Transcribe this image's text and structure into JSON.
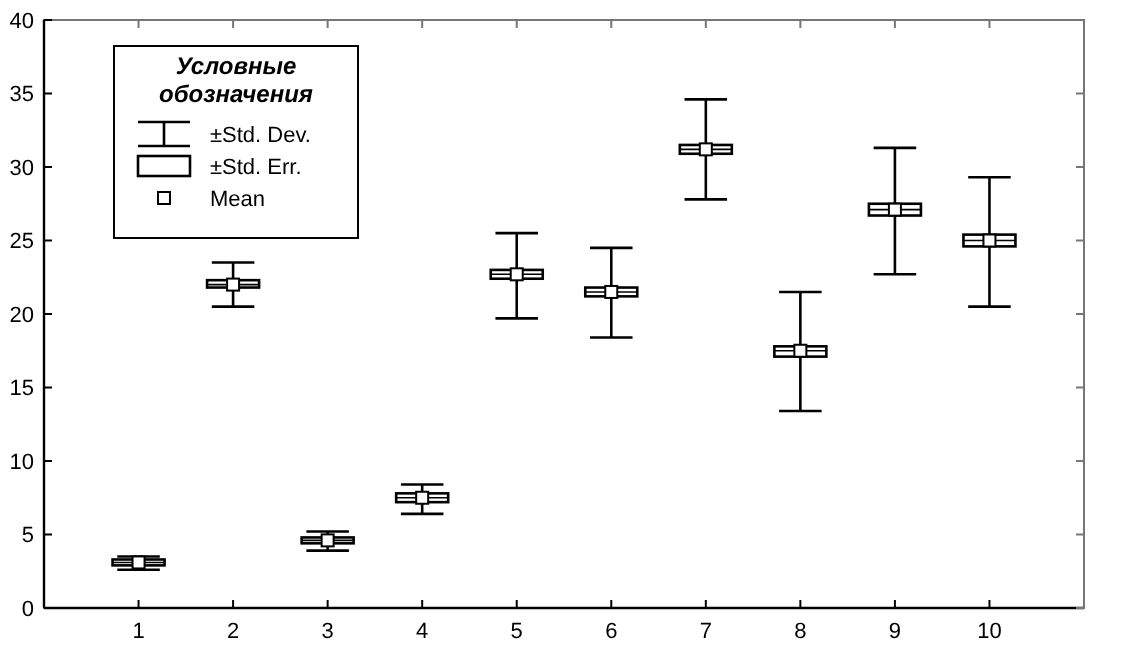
{
  "chart_data": {
    "type": "box",
    "categories": [
      "1",
      "2",
      "3",
      "4",
      "5",
      "6",
      "7",
      "8",
      "9",
      "10"
    ],
    "boxes": [
      {
        "low": 2.6,
        "q1": 2.9,
        "median": 3.1,
        "q3": 3.3,
        "high": 3.5,
        "mean": 3.1
      },
      {
        "low": 20.5,
        "q1": 21.8,
        "median": 22.0,
        "q3": 22.3,
        "high": 23.5,
        "mean": 22.0
      },
      {
        "low": 3.9,
        "q1": 4.4,
        "median": 4.6,
        "q3": 4.8,
        "high": 5.2,
        "mean": 4.6
      },
      {
        "low": 6.4,
        "q1": 7.2,
        "median": 7.5,
        "q3": 7.8,
        "high": 8.4,
        "mean": 7.5
      },
      {
        "low": 19.7,
        "q1": 22.4,
        "median": 22.7,
        "q3": 23.0,
        "high": 25.5,
        "mean": 22.7
      },
      {
        "low": 18.4,
        "q1": 21.2,
        "median": 21.5,
        "q3": 21.8,
        "high": 24.5,
        "mean": 21.5
      },
      {
        "low": 27.8,
        "q1": 30.9,
        "median": 31.2,
        "q3": 31.5,
        "high": 34.6,
        "mean": 31.2
      },
      {
        "low": 13.4,
        "q1": 17.1,
        "median": 17.5,
        "q3": 17.8,
        "high": 21.5,
        "mean": 17.5
      },
      {
        "low": 22.7,
        "q1": 26.7,
        "median": 27.1,
        "q3": 27.5,
        "high": 31.3,
        "mean": 27.1
      },
      {
        "low": 20.5,
        "q1": 24.6,
        "median": 25.0,
        "q3": 25.4,
        "high": 29.3,
        "mean": 25.0
      }
    ],
    "color": "#000000",
    "ylim": [
      0,
      40
    ],
    "yticks": [
      0,
      5,
      10,
      15,
      20,
      25,
      30,
      35,
      40
    ],
    "grid": false,
    "legend_title": "Условные обозначения",
    "annotations": [
      "±Std. Dev.",
      "±Std. Err.",
      "Mean"
    ]
  }
}
